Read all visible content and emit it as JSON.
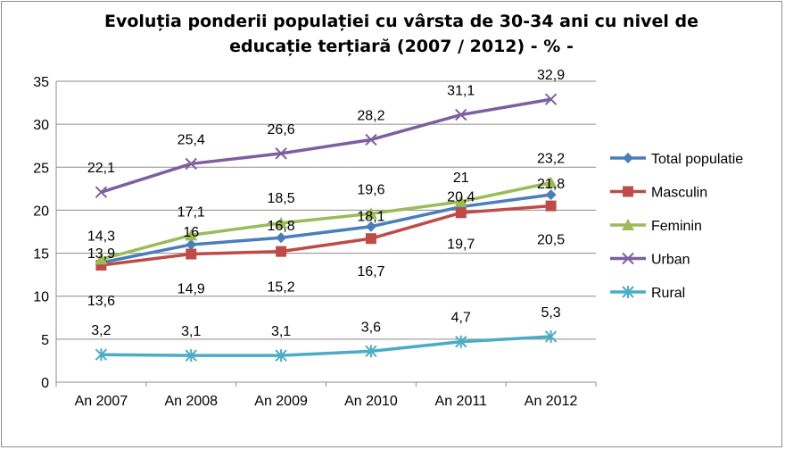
{
  "chart_data": {
    "type": "line",
    "title": "Evoluția ponderii populației cu vârsta de 30-34 ani cu nivel de educație terțiară (2007 / 2012) - % -",
    "categories": [
      "An 2007",
      "An 2008",
      "An 2009",
      "An 2010",
      "An 2011",
      "An 2012"
    ],
    "ylim": [
      0,
      35
    ],
    "yticks": [
      0,
      5,
      10,
      15,
      20,
      25,
      30,
      35
    ],
    "grid": true,
    "legend_position": "right",
    "series": [
      {
        "name": "Total populatie",
        "values": [
          13.9,
          16,
          16.8,
          18.1,
          20.4,
          21.8
        ],
        "labels": [
          "13,9",
          "16",
          "16,8",
          "18,1",
          "20,4",
          "21,8"
        ],
        "color": "#4a7ebb",
        "marker": "diamond"
      },
      {
        "name": "Masculin",
        "values": [
          13.6,
          14.9,
          15.2,
          16.7,
          19.7,
          20.5
        ],
        "labels": [
          "13,6",
          "14,9",
          "15,2",
          "16,7",
          "19,7",
          "20,5"
        ],
        "color": "#be4b48",
        "marker": "square"
      },
      {
        "name": "Feminin",
        "values": [
          14.3,
          17.1,
          18.5,
          19.6,
          21,
          23.2
        ],
        "labels": [
          "14,3",
          "17,1",
          "18,5",
          "19,6",
          "21",
          "23,2"
        ],
        "color": "#9bbb59",
        "marker": "triangle"
      },
      {
        "name": "Urban",
        "values": [
          22.1,
          25.4,
          26.6,
          28.2,
          31.1,
          32.9
        ],
        "labels": [
          "22,1",
          "25,4",
          "26,6",
          "28,2",
          "31,1",
          "32,9"
        ],
        "color": "#7d5fa0",
        "marker": "x"
      },
      {
        "name": "Rural",
        "values": [
          3.2,
          3.1,
          3.1,
          3.6,
          4.7,
          5.3
        ],
        "labels": [
          "3,2",
          "3,1",
          "3,1",
          "3,6",
          "4,7",
          "5,3"
        ],
        "color": "#4bacc6",
        "marker": "star"
      }
    ]
  }
}
